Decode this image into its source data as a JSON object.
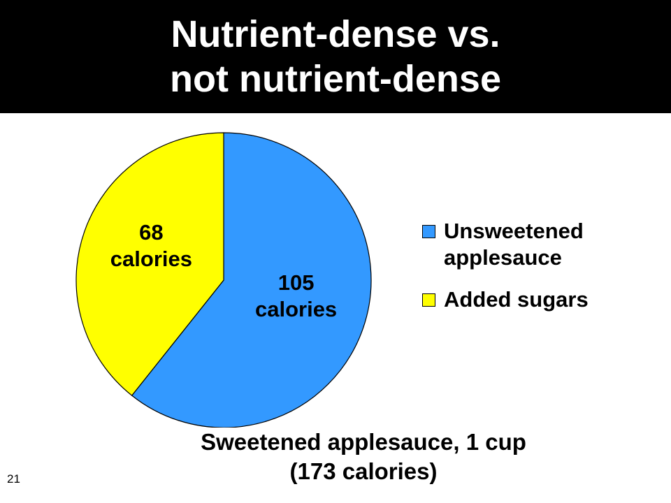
{
  "slide": {
    "title_line1": "Nutrient-dense vs.",
    "title_line2": "not nutrient-dense",
    "caption_line1": "Sweetened applesauce, 1 cup",
    "caption_line2": "(173 calories)",
    "page_number": "21"
  },
  "chart_data": {
    "type": "pie",
    "title": "Sweetened applesauce, 1 cup (173 calories)",
    "total": 173,
    "start_angle_deg": 0,
    "direction": "clockwise",
    "legend_position": "right",
    "slices": [
      {
        "name": "Unsweetened applesauce",
        "value": 105,
        "label_line1": "105",
        "label_line2": "calories",
        "color": "#3399ff"
      },
      {
        "name": "Added sugars",
        "value": 68,
        "label_line1": "68",
        "label_line2": "calories",
        "color": "#ffff00"
      }
    ],
    "legend": [
      {
        "label_line1": "Unsweetened",
        "label_line2": "applesauce",
        "color": "#3399ff"
      },
      {
        "label_line1": "Added sugars",
        "label_line2": "",
        "color": "#ffff00"
      }
    ]
  }
}
